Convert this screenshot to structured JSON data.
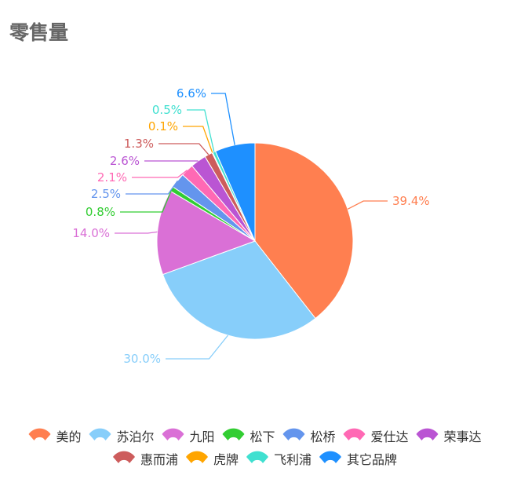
{
  "title": "零售量",
  "chart_data": {
    "type": "pie",
    "title": "零售量",
    "legend_position": "bottom",
    "categories": [
      "美的",
      "苏泊尔",
      "九阳",
      "松下",
      "松桥",
      "爱仕达",
      "荣事达",
      "惠而浦",
      "虎牌",
      "飞利浦",
      "其它品牌"
    ],
    "values": [
      39.4,
      30.0,
      14.0,
      0.8,
      2.5,
      2.1,
      2.6,
      1.3,
      0.1,
      0.5,
      6.6
    ],
    "labels": [
      "39.4%",
      "30.0%",
      "14.0%",
      "0.8%",
      "2.5%",
      "2.1%",
      "2.6%",
      "1.3%",
      "0.1%",
      "0.5%",
      "6.6%"
    ],
    "colors": [
      "#FF7F50",
      "#87CEFA",
      "#DA70D6",
      "#32CD32",
      "#6495ED",
      "#FF69B4",
      "#BA55D3",
      "#CD5C5C",
      "#FFA500",
      "#40E0D0",
      "#1E90FF"
    ]
  }
}
